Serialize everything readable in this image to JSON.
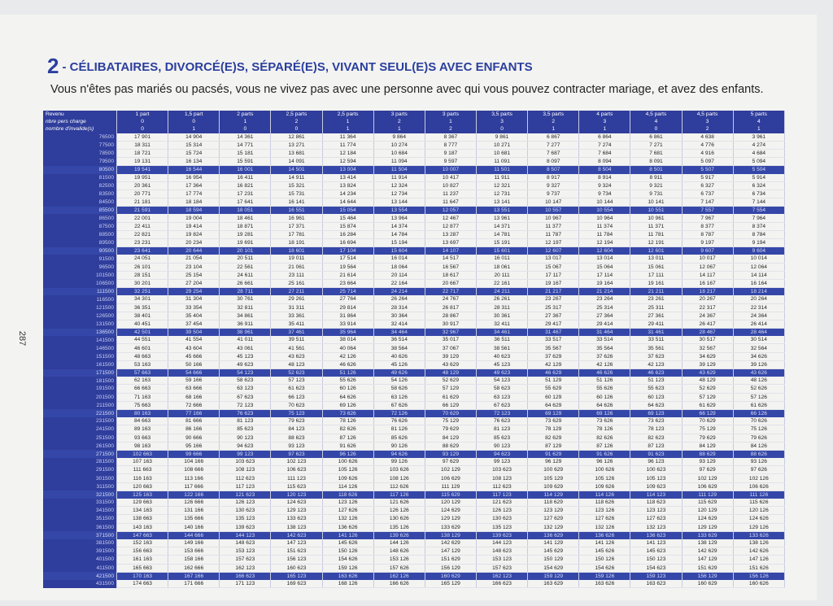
{
  "header": {
    "number": "2",
    "title": "- CÉLIBATAIRES, DIVORCÉ(E)S, SÉPARÉ(E)S, VIVANT SEUL(E)S AVEC ENFANTS",
    "subtitle": "Vous n'êtes pas mariés ou pacsés, vous ne vivez pas avec une personne avec qui vous pouvez contracter mariage, et avez des enfants."
  },
  "page_number": "287",
  "table": {
    "header_rows": [
      [
        "Revenu",
        "1 part",
        "1,5 part",
        "2 parts",
        "2,5 parts",
        "2,5 parts",
        "3 parts",
        "3 parts",
        "3,5 parts",
        "3,5 parts",
        "4 parts",
        "4,5 parts",
        "4,5 parts",
        "5 parts"
      ],
      [
        "nbre pers charge",
        "0",
        "0",
        "1",
        "2",
        "1",
        "2",
        "1",
        "3",
        "2",
        "3",
        "4",
        "3",
        "4"
      ],
      [
        "nombre d'invalide(s)",
        "0",
        "1",
        "0",
        "0",
        "1",
        "1",
        "2",
        "0",
        "1",
        "1",
        "0",
        "2",
        "1"
      ]
    ],
    "rows": [
      [
        "76500",
        "17 901",
        "14 904",
        "14 361",
        "12 861",
        "11 364",
        "9 864",
        "8 367",
        "9 861",
        "6 867",
        "6 864",
        "6 861",
        "4 638",
        "3 961"
      ],
      [
        "77500",
        "18 311",
        "15 314",
        "14 771",
        "13 271",
        "11 774",
        "10 274",
        "8 777",
        "10 271",
        "7 277",
        "7 274",
        "7 271",
        "4 776",
        "4 274"
      ],
      [
        "78500",
        "18 721",
        "15 724",
        "15 181",
        "13 681",
        "12 184",
        "10 684",
        "9 187",
        "10 681",
        "7 687",
        "7 684",
        "7 681",
        "4 916",
        "4 684"
      ],
      [
        "79500",
        "19 131",
        "16 134",
        "15 591",
        "14 091",
        "12 594",
        "11 094",
        "9 597",
        "11 091",
        "8 097",
        "8 094",
        "8 091",
        "5 097",
        "5 094"
      ],
      [
        "80500",
        "19 541",
        "16 544",
        "16 001",
        "14 501",
        "13 004",
        "11 504",
        "10 007",
        "11 501",
        "8 507",
        "8 504",
        "8 501",
        "5 507",
        "5 504"
      ],
      [
        "81500",
        "19 951",
        "16 954",
        "16 411",
        "14 911",
        "13 414",
        "11 914",
        "10 417",
        "11 911",
        "8 917",
        "8 914",
        "8 911",
        "5 917",
        "5 914"
      ],
      [
        "82500",
        "20 361",
        "17 364",
        "16 821",
        "15 321",
        "13 824",
        "12 324",
        "10 827",
        "12 321",
        "9 327",
        "9 324",
        "9 321",
        "6 327",
        "6 324"
      ],
      [
        "83500",
        "20 771",
        "17 774",
        "17 231",
        "15 731",
        "14 234",
        "12 734",
        "11 237",
        "12 731",
        "9 737",
        "9 734",
        "9 731",
        "6 737",
        "6 734"
      ],
      [
        "84500",
        "21 181",
        "18 184",
        "17 641",
        "16 141",
        "14 644",
        "13 144",
        "11 647",
        "13 141",
        "10 147",
        "10 144",
        "10 141",
        "7 147",
        "7 144"
      ],
      [
        "85500",
        "21 591",
        "18 594",
        "18 051",
        "16 551",
        "15 054",
        "13 554",
        "12 057",
        "13 551",
        "10 557",
        "10 554",
        "10 551",
        "7 557",
        "7 554"
      ],
      [
        "86500",
        "22 001",
        "19 004",
        "18 461",
        "16 961",
        "15 464",
        "13 964",
        "12 467",
        "13 961",
        "10 967",
        "10 964",
        "10 961",
        "7 967",
        "7 964"
      ],
      [
        "87500",
        "22 411",
        "19 414",
        "18 871",
        "17 371",
        "15 874",
        "14 374",
        "12 877",
        "14 371",
        "11 377",
        "11 374",
        "11 371",
        "8 377",
        "8 374"
      ],
      [
        "88500",
        "22 821",
        "19 824",
        "19 281",
        "17 781",
        "16 284",
        "14 784",
        "13 287",
        "14 781",
        "11 787",
        "11 784",
        "11 781",
        "8 787",
        "8 784"
      ],
      [
        "89500",
        "23 231",
        "20 234",
        "19 691",
        "18 191",
        "16 694",
        "15 194",
        "13 697",
        "15 191",
        "12 197",
        "12 194",
        "12 191",
        "9 197",
        "9 194"
      ],
      [
        "90500",
        "23 641",
        "20 644",
        "20 101",
        "18 601",
        "17 104",
        "15 604",
        "14 107",
        "15 601",
        "12 607",
        "12 604",
        "12 601",
        "9 607",
        "9 604"
      ],
      [
        "91500",
        "24 051",
        "21 054",
        "20 511",
        "19 011",
        "17 514",
        "16 014",
        "14 517",
        "16 011",
        "13 017",
        "13 014",
        "13 011",
        "10 017",
        "10 014"
      ],
      [
        "96500",
        "26 101",
        "23 104",
        "22 561",
        "21 061",
        "19 564",
        "18 064",
        "16 567",
        "18 061",
        "15 067",
        "15 064",
        "15 061",
        "12 067",
        "12 064"
      ],
      [
        "101500",
        "28 151",
        "25 154",
        "24 611",
        "23 111",
        "21 614",
        "20 114",
        "18 617",
        "20 111",
        "17 117",
        "17 114",
        "17 111",
        "14 117",
        "14 114"
      ],
      [
        "106500",
        "30 201",
        "27 204",
        "26 661",
        "25 161",
        "23 664",
        "22 164",
        "20 667",
        "22 161",
        "19 167",
        "19 164",
        "19 161",
        "16 167",
        "16 164"
      ],
      [
        "111500",
        "32 251",
        "29 254",
        "28 711",
        "27 211",
        "25 714",
        "24 214",
        "22 717",
        "24 211",
        "21 217",
        "21 214",
        "21 211",
        "18 217",
        "18 214"
      ],
      [
        "116500",
        "34 301",
        "31 304",
        "30 761",
        "29 261",
        "27 764",
        "26 264",
        "24 767",
        "26 261",
        "23 267",
        "23 264",
        "23 261",
        "20 267",
        "20 264"
      ],
      [
        "121500",
        "36 351",
        "33 354",
        "32 811",
        "31 311",
        "29 814",
        "28 314",
        "26 817",
        "28 311",
        "25 317",
        "25 314",
        "25 311",
        "22 317",
        "22 314"
      ],
      [
        "126500",
        "38 401",
        "35 404",
        "34 861",
        "33 361",
        "31 864",
        "30 364",
        "28 867",
        "30 361",
        "27 367",
        "27 364",
        "27 361",
        "24 367",
        "24 364"
      ],
      [
        "131500",
        "40 451",
        "37 454",
        "36 911",
        "35 411",
        "33 914",
        "32 414",
        "30 917",
        "32 411",
        "29 417",
        "29 414",
        "29 411",
        "26 417",
        "26 414"
      ],
      [
        "136500",
        "42 501",
        "39 504",
        "38 961",
        "37 461",
        "35 964",
        "34 464",
        "32 967",
        "34 461",
        "31 467",
        "31 464",
        "31 461",
        "28 467",
        "28 464"
      ],
      [
        "141500",
        "44 551",
        "41 554",
        "41 011",
        "39 511",
        "38 014",
        "36 514",
        "35 017",
        "36 511",
        "33 517",
        "33 514",
        "33 511",
        "30 517",
        "30 514"
      ],
      [
        "146500",
        "46 601",
        "43 604",
        "43 061",
        "41 561",
        "40 064",
        "38 564",
        "37 067",
        "38 561",
        "35 567",
        "35 564",
        "35 561",
        "32 567",
        "32 564"
      ],
      [
        "151500",
        "48 663",
        "45 666",
        "45 123",
        "43 623",
        "42 126",
        "40 626",
        "39 129",
        "40 623",
        "37 629",
        "37 626",
        "37 623",
        "34 629",
        "34 626"
      ],
      [
        "161500",
        "53 163",
        "50 166",
        "49 623",
        "48 123",
        "46 626",
        "45 126",
        "43 629",
        "45 123",
        "42 129",
        "42 126",
        "42 123",
        "39 129",
        "39 126"
      ],
      [
        "171500",
        "57 663",
        "54 666",
        "54 123",
        "52 623",
        "51 126",
        "49 626",
        "48 129",
        "49 623",
        "46 629",
        "46 626",
        "46 623",
        "43 629",
        "43 626"
      ],
      [
        "181500",
        "62 163",
        "59 166",
        "58 623",
        "57 123",
        "55 626",
        "54 126",
        "52 629",
        "54 123",
        "51 129",
        "51 126",
        "51 123",
        "48 129",
        "48 126"
      ],
      [
        "191500",
        "66 663",
        "63 666",
        "63 123",
        "61 623",
        "60 126",
        "58 626",
        "57 129",
        "58 623",
        "55 629",
        "55 626",
        "55 623",
        "52 629",
        "52 626"
      ],
      [
        "201500",
        "71 163",
        "68 166",
        "67 623",
        "66 123",
        "64 626",
        "63 126",
        "61 629",
        "63 123",
        "60 129",
        "60 126",
        "60 123",
        "57 129",
        "57 126"
      ],
      [
        "211500",
        "75 663",
        "72 666",
        "72 123",
        "70 623",
        "69 126",
        "67 626",
        "66 129",
        "67 623",
        "64 629",
        "64 626",
        "64 623",
        "61 629",
        "61 626"
      ],
      [
        "221500",
        "80 163",
        "77 166",
        "76 623",
        "75 123",
        "73 626",
        "72 126",
        "70 629",
        "72 123",
        "69 129",
        "69 126",
        "69 123",
        "66 129",
        "66 126"
      ],
      [
        "231500",
        "84 663",
        "81 666",
        "81 123",
        "79 623",
        "78 126",
        "76 626",
        "75 129",
        "76 623",
        "73 629",
        "73 626",
        "73 623",
        "70 629",
        "70 626"
      ],
      [
        "241500",
        "89 163",
        "86 166",
        "85 623",
        "84 123",
        "82 626",
        "81 126",
        "79 629",
        "81 123",
        "78 129",
        "78 126",
        "78 123",
        "75 129",
        "75 126"
      ],
      [
        "251500",
        "93 663",
        "90 666",
        "90 123",
        "88 623",
        "87 126",
        "85 626",
        "84 129",
        "85 623",
        "82 629",
        "82 626",
        "82 623",
        "79 629",
        "79 626"
      ],
      [
        "261500",
        "98 163",
        "95 166",
        "94 623",
        "93 123",
        "91 626",
        "90 126",
        "88 629",
        "90 123",
        "87 129",
        "87 126",
        "87 123",
        "84 129",
        "84 126"
      ],
      [
        "271500",
        "102 663",
        "99 666",
        "99 123",
        "97 623",
        "96 126",
        "94 626",
        "93 129",
        "94 623",
        "91 629",
        "91 626",
        "91 623",
        "88 629",
        "88 626"
      ],
      [
        "281500",
        "107 163",
        "104 166",
        "103 623",
        "102 123",
        "100 626",
        "99 126",
        "97 629",
        "99 123",
        "96 129",
        "96 126",
        "96 123",
        "93 129",
        "93 126"
      ],
      [
        "291500",
        "111 663",
        "108 666",
        "108 123",
        "106 623",
        "105 126",
        "103 626",
        "102 129",
        "103 623",
        "100 629",
        "100 626",
        "100 623",
        "97 629",
        "97 626"
      ],
      [
        "301500",
        "116 163",
        "113 166",
        "112 623",
        "111 123",
        "109 626",
        "108 126",
        "106 629",
        "108 123",
        "105 129",
        "105 126",
        "105 123",
        "102 129",
        "102 126"
      ],
      [
        "311500",
        "120 663",
        "117 666",
        "117 123",
        "115 623",
        "114 126",
        "112 626",
        "111 129",
        "112 623",
        "109 629",
        "109 626",
        "109 623",
        "106 629",
        "106 626"
      ],
      [
        "321500",
        "125 163",
        "122 166",
        "121 623",
        "120 123",
        "118 626",
        "117 126",
        "115 629",
        "117 123",
        "114 129",
        "114 126",
        "114 123",
        "111 129",
        "111 126"
      ],
      [
        "331500",
        "129 663",
        "126 666",
        "126 123",
        "124 623",
        "123 126",
        "121 626",
        "120 129",
        "121 623",
        "118 629",
        "118 626",
        "118 623",
        "115 629",
        "115 626"
      ],
      [
        "341500",
        "134 163",
        "131 166",
        "130 623",
        "129 123",
        "127 626",
        "126 126",
        "124 629",
        "126 123",
        "123 129",
        "123 126",
        "123 123",
        "120 129",
        "120 126"
      ],
      [
        "351500",
        "138 663",
        "135 666",
        "135 123",
        "133 623",
        "132 126",
        "130 626",
        "129 129",
        "130 623",
        "127 629",
        "127 626",
        "127 623",
        "124 629",
        "124 626"
      ],
      [
        "361500",
        "143 163",
        "140 166",
        "139 623",
        "138 123",
        "136 626",
        "135 126",
        "133 629",
        "135 123",
        "132 129",
        "132 126",
        "132 123",
        "129 129",
        "129 126"
      ],
      [
        "371500",
        "147 663",
        "144 666",
        "144 123",
        "142 623",
        "141 126",
        "139 626",
        "138 129",
        "139 623",
        "136 629",
        "136 626",
        "136 623",
        "133 629",
        "133 626"
      ],
      [
        "381500",
        "152 163",
        "149 166",
        "148 623",
        "147 123",
        "145 626",
        "144 126",
        "142 629",
        "144 123",
        "141 129",
        "141 126",
        "141 123",
        "138 129",
        "138 126"
      ],
      [
        "391500",
        "156 663",
        "153 666",
        "153 123",
        "151 623",
        "150 126",
        "148 626",
        "147 129",
        "148 623",
        "145 629",
        "145 626",
        "145 623",
        "142 629",
        "142 626"
      ],
      [
        "401500",
        "161 163",
        "158 166",
        "157 623",
        "156 123",
        "154 626",
        "153 126",
        "151 629",
        "153 123",
        "150 129",
        "150 126",
        "150 123",
        "147 129",
        "147 126"
      ],
      [
        "411500",
        "165 663",
        "162 666",
        "162 123",
        "160 623",
        "159 126",
        "157 626",
        "156 129",
        "157 623",
        "154 629",
        "154 626",
        "154 623",
        "151 629",
        "151 626"
      ],
      [
        "421500",
        "170 163",
        "167 166",
        "166 623",
        "165 123",
        "163 626",
        "162 126",
        "160 629",
        "162 123",
        "159 129",
        "159 126",
        "159 123",
        "156 129",
        "156 126"
      ],
      [
        "431500",
        "174 663",
        "171 666",
        "171 123",
        "169 623",
        "168 126",
        "166 626",
        "165 129",
        "166 623",
        "163 629",
        "163 626",
        "163 623",
        "160 629",
        "160 626"
      ]
    ]
  }
}
